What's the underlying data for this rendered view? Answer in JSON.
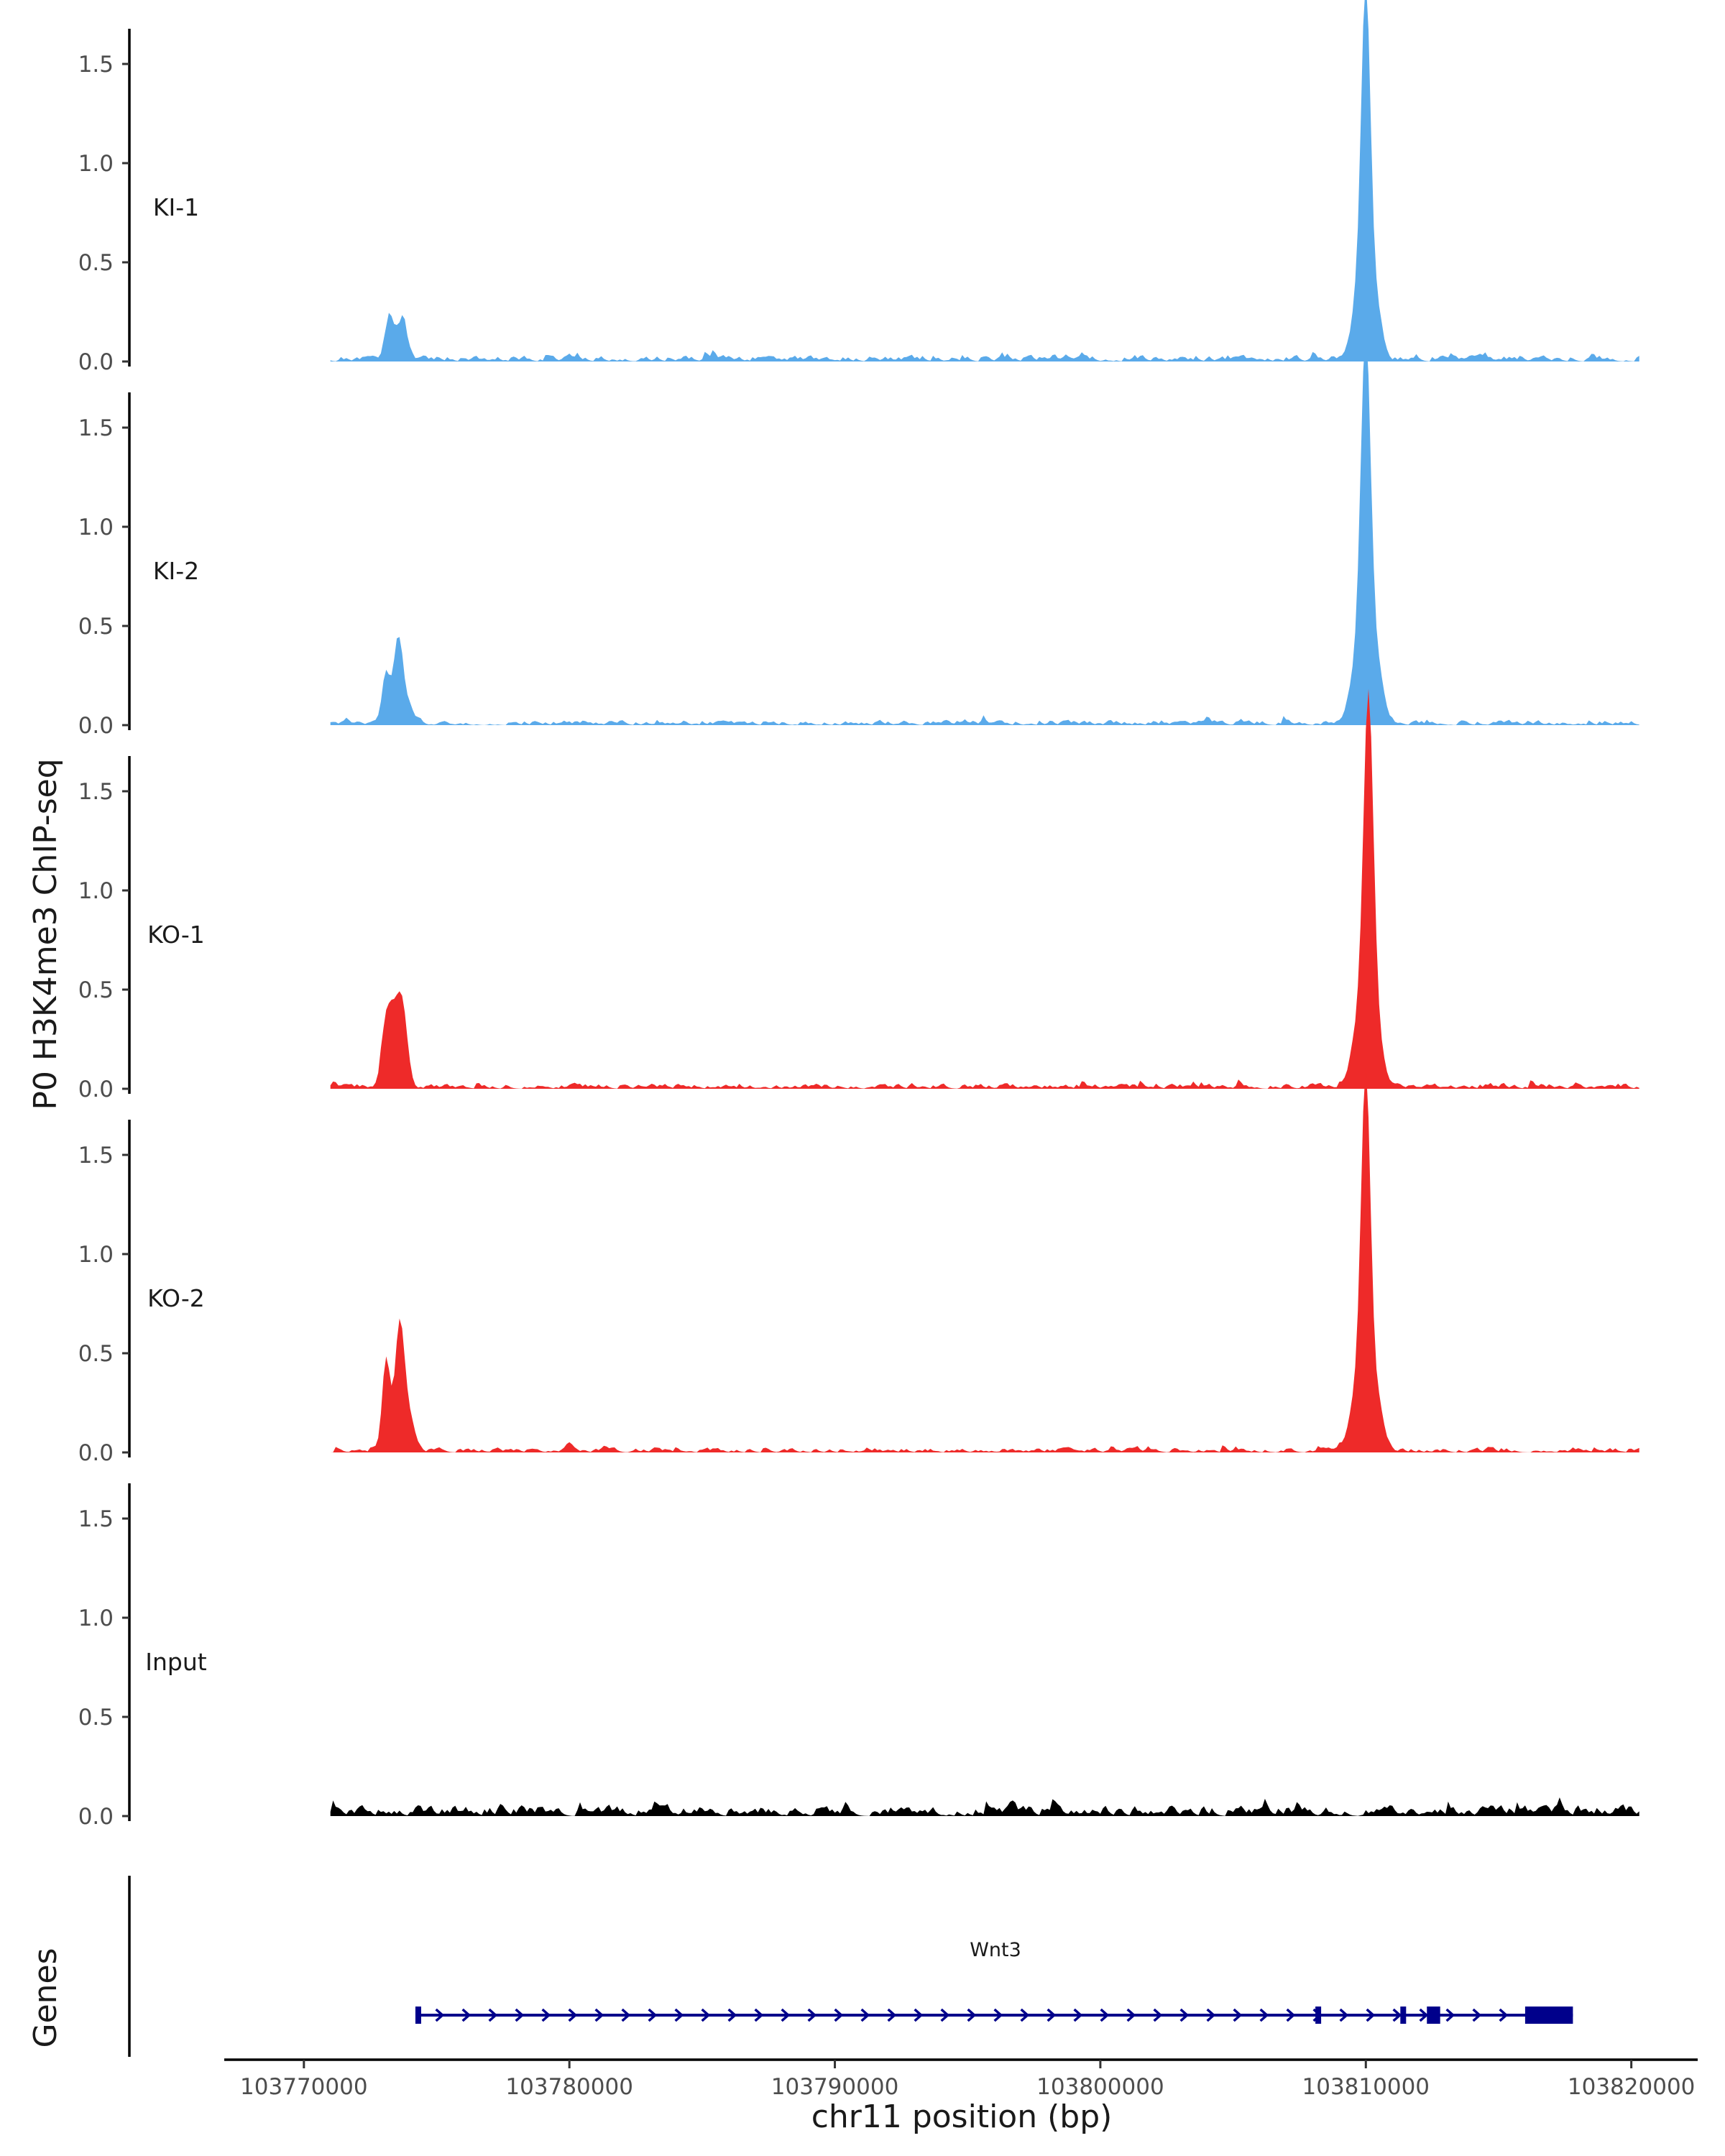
{
  "chart_data": {
    "type": "area",
    "ylabel": "P0 H3K4me3 ChIP-seq",
    "xlabel": "chr11 position (bp)",
    "gene_track_label": "Genes",
    "xlim": [
      103767000,
      103822500
    ],
    "ylim": [
      0,
      1.65
    ],
    "x_ticks": [
      103770000,
      103780000,
      103790000,
      103800000,
      103810000,
      103820000
    ],
    "x_tick_labels": [
      "103770000",
      "103780000",
      "103790000",
      "103800000",
      "103810000",
      "103820000"
    ],
    "y_ticks": [
      0,
      0.5,
      1.0,
      1.5
    ],
    "y_tick_labels": [
      "0.0",
      "0.5",
      "1.0",
      "1.5"
    ],
    "x_range": [
      103771000,
      103820300
    ],
    "tracks": [
      {
        "name": "KI-1",
        "color": "#5aaaea",
        "peaks": [
          [
            103773200,
            0.16,
            150
          ],
          [
            103773750,
            0.16,
            150
          ],
          [
            103773450,
            0.1,
            250
          ],
          [
            103810000,
            1.53,
            170
          ],
          [
            103809800,
            0.35,
            300
          ],
          [
            103810350,
            0.25,
            250
          ]
        ],
        "noise": 0.04,
        "seed": 11
      },
      {
        "name": "KI-2",
        "color": "#5aaaea",
        "peaks": [
          [
            103773100,
            0.25,
            160
          ],
          [
            103773550,
            0.36,
            160
          ],
          [
            103773800,
            0.12,
            250
          ],
          [
            103810000,
            1.58,
            180
          ],
          [
            103809800,
            0.4,
            320
          ],
          [
            103810400,
            0.28,
            260
          ]
        ],
        "noise": 0.035,
        "seed": 23
      },
      {
        "name": "KO-1",
        "color": "#ee2a29",
        "peaks": [
          [
            103773100,
            0.3,
            180
          ],
          [
            103773700,
            0.37,
            200
          ],
          [
            103773400,
            0.25,
            200
          ],
          [
            103810100,
            1.58,
            180
          ],
          [
            103809850,
            0.4,
            320
          ],
          [
            103810400,
            0.25,
            260
          ]
        ],
        "noise": 0.035,
        "seed": 37
      },
      {
        "name": "KO-2",
        "color": "#ee2a29",
        "peaks": [
          [
            103773100,
            0.46,
            150
          ],
          [
            103773600,
            0.56,
            170
          ],
          [
            103773900,
            0.2,
            250
          ],
          [
            103780000,
            0.05,
            150
          ],
          [
            103810000,
            1.54,
            170
          ],
          [
            103809800,
            0.4,
            320
          ],
          [
            103810400,
            0.25,
            260
          ]
        ],
        "noise": 0.03,
        "seed": 51
      },
      {
        "name": "Input",
        "color": "#000000",
        "peaks": [],
        "noise": 0.07,
        "seed": 73
      }
    ],
    "gene": {
      "name": "Wnt3",
      "strand": "+",
      "color": "#00008b",
      "start": 103774300,
      "end": 103817800,
      "exons": [
        [
          103774200,
          103774400
        ],
        [
          103808100,
          103808300
        ],
        [
          103811300,
          103811500
        ],
        [
          103812300,
          103812800
        ],
        [
          103816000,
          103817800
        ]
      ]
    }
  }
}
